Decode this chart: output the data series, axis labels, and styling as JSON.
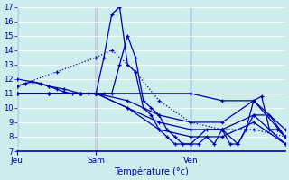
{
  "background_color": "#cdeeed",
  "grid_color": "#aaddcc",
  "line_color": "#0000aa",
  "ylim": [
    7,
    17
  ],
  "yticks": [
    7,
    8,
    9,
    10,
    11,
    12,
    13,
    14,
    15,
    16,
    17
  ],
  "xtick_labels": [
    "Jeu",
    "Sam",
    "Ven"
  ],
  "xtick_positions": [
    0,
    10,
    22
  ],
  "xlabel": "Température (°c)",
  "xmin": 0,
  "xmax": 34,
  "series": [
    {
      "x": [
        0,
        1,
        2,
        3,
        4,
        5,
        6,
        7,
        8,
        9,
        10,
        11,
        12,
        13,
        14,
        15,
        16,
        17,
        18,
        19,
        20,
        21,
        22,
        23,
        24,
        25,
        26,
        27,
        28,
        29,
        30,
        31,
        32,
        33,
        34
      ],
      "y": [
        11.5,
        11.7,
        11.8,
        11.7,
        11.5,
        11.3,
        11.1,
        11.0,
        11.0,
        11.0,
        11.0,
        13.5,
        16.5,
        17.0,
        13.0,
        12.5,
        10.0,
        9.5,
        8.5,
        8.0,
        7.5,
        7.5,
        7.5,
        7.5,
        8.0,
        7.5,
        8.5,
        7.5,
        7.5,
        8.5,
        10.5,
        10.8,
        8.5,
        8.5,
        8.0
      ],
      "style": "-",
      "lw": 0.9
    },
    {
      "x": [
        0,
        2,
        4,
        6,
        8,
        10,
        11,
        12,
        13,
        14,
        15,
        16,
        17,
        18,
        19,
        20,
        21,
        22,
        24,
        26,
        28,
        30,
        32,
        34
      ],
      "y": [
        12.0,
        11.8,
        11.5,
        11.3,
        11.0,
        11.0,
        11.0,
        11.0,
        13.0,
        15.0,
        13.5,
        10.5,
        10.0,
        9.5,
        8.5,
        8.0,
        7.5,
        7.5,
        8.5,
        8.5,
        7.5,
        9.5,
        9.5,
        8.0
      ],
      "style": "-",
      "lw": 0.9
    },
    {
      "x": [
        0,
        4,
        8,
        10,
        14,
        18,
        22,
        26,
        30,
        34
      ],
      "y": [
        11.0,
        11.0,
        11.0,
        11.0,
        10.5,
        9.5,
        9.0,
        9.0,
        10.5,
        8.0
      ],
      "style": "-",
      "lw": 0.9
    },
    {
      "x": [
        0,
        4,
        8,
        10,
        14,
        18,
        22,
        26,
        30,
        34
      ],
      "y": [
        11.0,
        11.0,
        11.0,
        11.0,
        10.0,
        9.0,
        8.5,
        8.5,
        9.5,
        7.5
      ],
      "style": "-",
      "lw": 0.9
    },
    {
      "x": [
        0,
        4,
        8,
        10,
        14,
        18,
        22,
        26,
        30,
        34
      ],
      "y": [
        11.0,
        11.0,
        11.0,
        11.0,
        10.0,
        8.5,
        8.0,
        8.0,
        9.0,
        7.5
      ],
      "style": "-",
      "lw": 0.9
    },
    {
      "x": [
        0,
        4,
        8,
        10,
        22,
        26,
        30,
        34
      ],
      "y": [
        11.0,
        11.0,
        11.0,
        11.0,
        11.0,
        10.5,
        10.5,
        8.5
      ],
      "style": "-",
      "lw": 0.9
    },
    {
      "x": [
        0,
        5,
        10,
        12,
        15,
        18,
        22,
        26,
        30,
        34
      ],
      "y": [
        11.5,
        12.5,
        13.5,
        14.0,
        12.5,
        10.5,
        9.0,
        8.5,
        8.5,
        8.0
      ],
      "style": ":",
      "lw": 0.9
    }
  ]
}
